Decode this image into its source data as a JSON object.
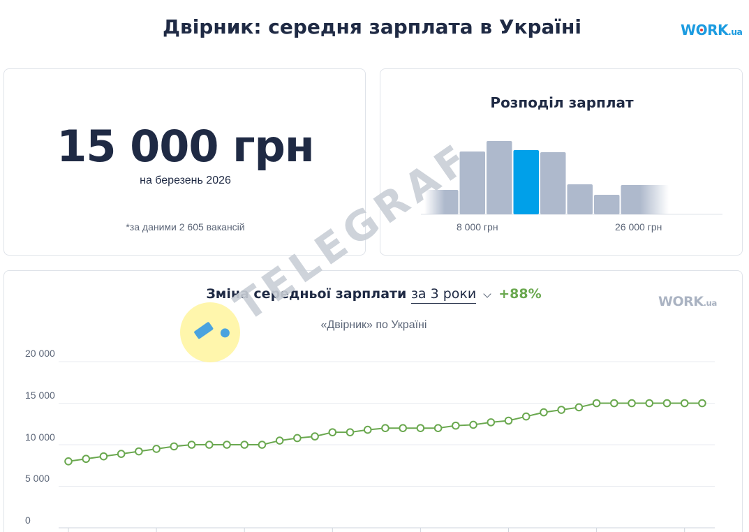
{
  "header": {
    "title": "Двірник: середня зарплата в Україні",
    "logo_text": "WORK",
    "logo_suffix": ".ua"
  },
  "salary_card": {
    "value": "15 000 грн",
    "period": "на березень 2026",
    "note": "*за даними 2 605 вакансій"
  },
  "distribution_card": {
    "title": "Розподіл зарплат",
    "tick_low": "8 000 грн",
    "tick_high": "26 000 грн",
    "chart_data": {
      "type": "bar",
      "title": "Розподіл зарплат",
      "relative_values": [
        35,
        90,
        105,
        92,
        89,
        43,
        28,
        42
      ],
      "highlight_index": 3,
      "faded_edges": true,
      "tick_labels": [
        "8 000 грн",
        "26 000 грн"
      ],
      "colors": {
        "bar": "#aeb9cc",
        "highlight": "#00a0e9"
      }
    }
  },
  "trend_card": {
    "title": "Зміна середньої зарплати",
    "period_select": "за 3 роки",
    "growth": "+88%",
    "subtitle": "«Двірник» по Україні",
    "logo_text": "WORK",
    "logo_suffix": ".ua",
    "y_tick_labels": [
      "20 000",
      "15 000",
      "10 000",
      "5 000",
      "0"
    ],
    "chart_data": {
      "type": "line",
      "ylim": [
        0,
        20000
      ],
      "y_ticks": [
        0,
        5000,
        10000,
        15000,
        20000
      ],
      "values": [
        8000,
        8300,
        8600,
        8900,
        9200,
        9500,
        9800,
        10000,
        10000,
        10000,
        10000,
        10000,
        10500,
        10800,
        11000,
        11500,
        11500,
        11800,
        12000,
        12000,
        12000,
        12000,
        12300,
        12400,
        12700,
        12900,
        13400,
        13900,
        14200,
        14500,
        15000,
        15000,
        15000,
        15000,
        15000,
        15000,
        15000
      ],
      "grid": true,
      "colors": {
        "line": "#6aa84f",
        "marker_fill": "#ffffff"
      }
    }
  },
  "watermark": {
    "text": "TELEGRAF",
    "colors": {
      "text": "#c9ced6",
      "circle": "#fff59d",
      "mark": "#4aa3df"
    }
  }
}
